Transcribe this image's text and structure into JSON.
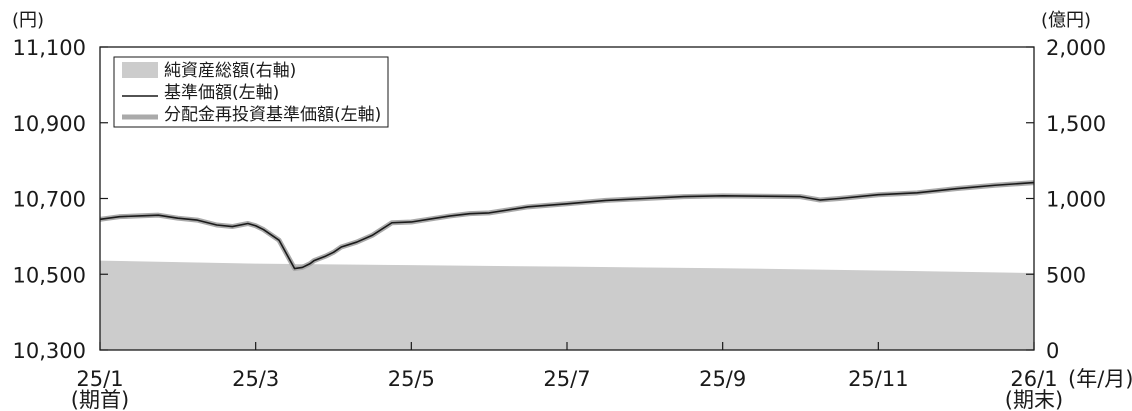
{
  "chart_data": {
    "type": "line",
    "title": "",
    "left_unit": "(円)",
    "right_unit": "(億円)",
    "x_unit": "(年/月)",
    "x_first_sub": "(期首)",
    "x_last_sub": "(期末)",
    "x_tick_labels": [
      "25/1",
      "25/3",
      "25/5",
      "25/7",
      "25/9",
      "25/11",
      "26/1"
    ],
    "y_left_ticks": [
      "11,100",
      "10,900",
      "10,700",
      "10,500",
      "10,300"
    ],
    "y_right_ticks": [
      "2,000",
      "1,500",
      "1,000",
      "500",
      "0"
    ],
    "ylim_left": [
      10300,
      11100
    ],
    "ylim_right": [
      0,
      2000
    ],
    "legend_position": "top-left",
    "series": [
      {
        "name": "純資産総額(右軸)",
        "kind": "area",
        "axis": "right",
        "color": "#cccccc",
        "x": [
          0,
          2,
          4,
          6,
          8,
          10,
          12
        ],
        "values": [
          590,
          570,
          560,
          550,
          540,
          525,
          508
        ]
      },
      {
        "name": "基準価額(左軸)",
        "kind": "line",
        "axis": "left",
        "color": "#1a1a1a",
        "x": [
          0,
          0.25,
          0.5,
          0.75,
          1.0,
          1.25,
          1.5,
          1.7,
          1.9,
          2.0,
          2.1,
          2.3,
          2.5,
          2.6,
          2.7,
          2.75,
          2.8,
          2.9,
          3.0,
          3.1,
          3.3,
          3.5,
          3.75,
          4.0,
          4.25,
          4.5,
          4.75,
          5.0,
          5.5,
          6.0,
          6.5,
          7.0,
          7.5,
          8.0,
          8.5,
          9.0,
          9.25,
          9.5,
          10.0,
          10.5,
          11.0,
          11.5,
          12.0
        ],
        "values": [
          10645,
          10652,
          10654,
          10656,
          10648,
          10643,
          10630,
          10626,
          10634,
          10628,
          10618,
          10590,
          10515,
          10518,
          10528,
          10536,
          10540,
          10548,
          10558,
          10572,
          10585,
          10603,
          10636,
          10638,
          10646,
          10654,
          10660,
          10662,
          10678,
          10686,
          10695,
          10700,
          10705,
          10707,
          10706,
          10705,
          10696,
          10700,
          10710,
          10715,
          10726,
          10735,
          10742
        ]
      },
      {
        "name": "分配金再投資基準価額(左軸)",
        "kind": "line",
        "axis": "left",
        "color": "#aaaaaa",
        "x": [
          0,
          0.25,
          0.5,
          0.75,
          1.0,
          1.25,
          1.5,
          1.7,
          1.9,
          2.0,
          2.1,
          2.3,
          2.5,
          2.6,
          2.7,
          2.75,
          2.8,
          2.9,
          3.0,
          3.1,
          3.3,
          3.5,
          3.75,
          4.0,
          4.25,
          4.5,
          4.75,
          5.0,
          5.5,
          6.0,
          6.5,
          7.0,
          7.5,
          8.0,
          8.5,
          9.0,
          9.25,
          9.5,
          10.0,
          10.5,
          11.0,
          11.5,
          12.0
        ],
        "values": [
          10645,
          10652,
          10654,
          10656,
          10648,
          10643,
          10630,
          10626,
          10634,
          10628,
          10618,
          10590,
          10515,
          10518,
          10528,
          10536,
          10540,
          10548,
          10558,
          10572,
          10585,
          10603,
          10636,
          10638,
          10646,
          10654,
          10660,
          10662,
          10678,
          10686,
          10695,
          10700,
          10705,
          10707,
          10706,
          10705,
          10696,
          10700,
          10710,
          10715,
          10726,
          10735,
          10742
        ]
      }
    ]
  }
}
